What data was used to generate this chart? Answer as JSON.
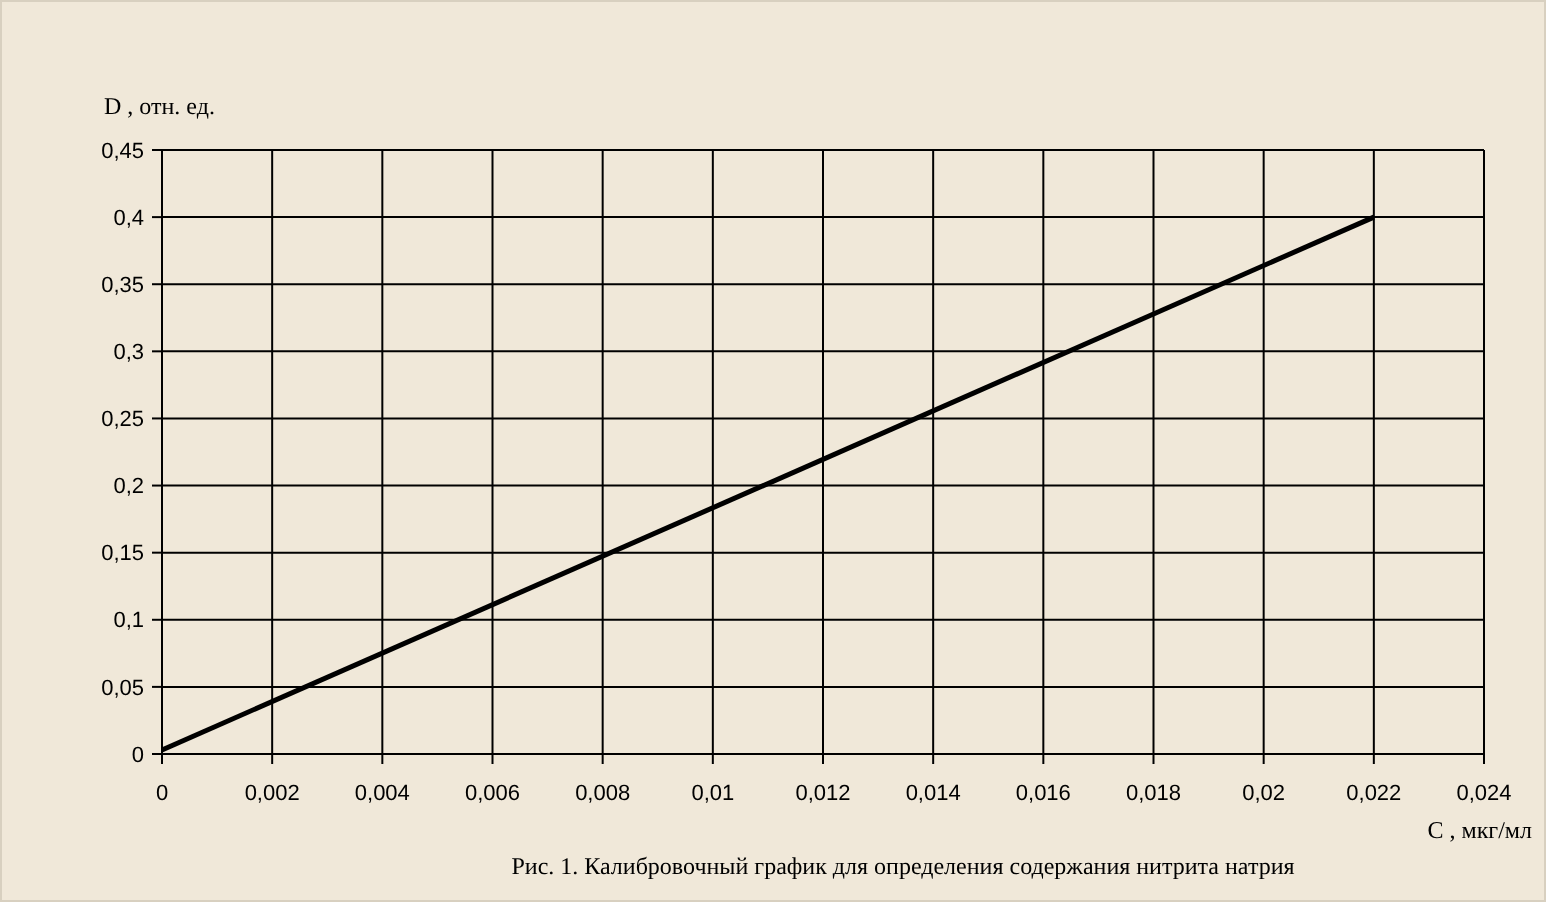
{
  "chart_data": {
    "type": "line",
    "ylabel": "D , отн. ед.",
    "xlabel": "C , мкг/мл",
    "annotations": [
      "Рис. 1. Калибровочный график для определения содержания нитрита натрия"
    ],
    "x": [
      0,
      0.022
    ],
    "series": [
      {
        "color": "#000000",
        "values": [
          0.003,
          0.4
        ]
      }
    ],
    "xlim": [
      0,
      0.024
    ],
    "ylim": [
      0,
      0.45
    ],
    "xticks": [
      0,
      {
        "value": 0.002,
        "label": "0,002"
      },
      {
        "value": 0.004,
        "label": "0,004"
      },
      {
        "value": 0.006,
        "label": "0,006"
      },
      {
        "value": 0.008,
        "label": "0,008"
      },
      {
        "value": 0.01,
        "label": "0,01"
      },
      {
        "value": 0.012,
        "label": "0,012"
      },
      {
        "value": 0.014,
        "label": "0,014"
      },
      {
        "value": 0.016,
        "label": "0,016"
      },
      {
        "value": 0.018,
        "label": "0,018"
      },
      {
        "value": 0.02,
        "label": "0,02"
      },
      {
        "value": 0.022,
        "label": "0,022"
      },
      {
        "value": 0.024,
        "label": "0,024"
      }
    ],
    "yticks": [
      0,
      {
        "value": 0.05,
        "label": "0,05"
      },
      {
        "value": 0.1,
        "label": "0,1"
      },
      {
        "value": 0.15,
        "label": "0,15"
      },
      {
        "value": 0.2,
        "label": "0,2"
      },
      {
        "value": 0.25,
        "label": "0,25"
      },
      {
        "value": 0.3,
        "label": "0,3"
      },
      {
        "value": 0.35,
        "label": "0,35"
      },
      {
        "value": 0.4,
        "label": "0,4"
      },
      {
        "value": 0.45,
        "label": "0,45"
      }
    ],
    "grid": true,
    "marker": "none",
    "line_style": "solid"
  }
}
